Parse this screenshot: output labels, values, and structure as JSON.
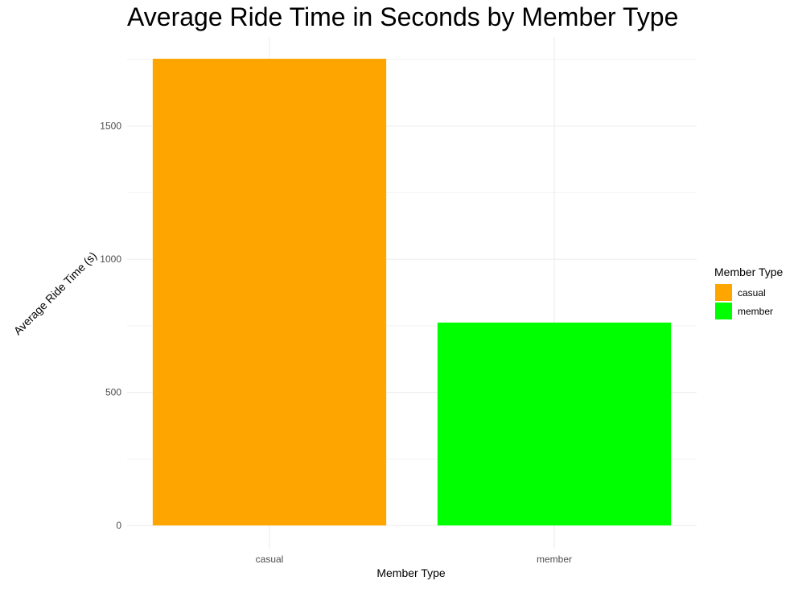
{
  "chart_data": {
    "type": "bar",
    "title": "Average Ride Time in Seconds by Member Type",
    "xlabel": "Member Type",
    "ylabel": "Average Ride Time (s)",
    "categories": [
      "casual",
      "member"
    ],
    "values": [
      1753,
      762
    ],
    "colors": [
      "#FFA500",
      "#00FF00"
    ],
    "ylim": [
      0,
      1753
    ],
    "yticks": [
      0,
      500,
      1000,
      1500
    ],
    "grid": true,
    "legend": {
      "title": "Member Type",
      "placement": "right",
      "entries": [
        {
          "label": "casual",
          "color": "#FFA500"
        },
        {
          "label": "member",
          "color": "#00FF00"
        }
      ]
    }
  }
}
